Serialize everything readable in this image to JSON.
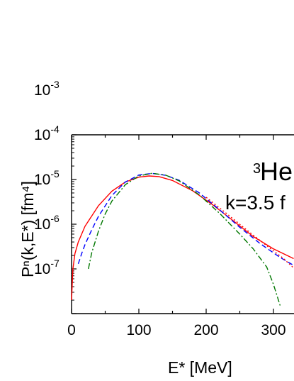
{
  "chart_data": {
    "type": "line",
    "xlabel": "E* [MeV]",
    "ylabel": "Pⁿ(k,E*) [fm⁴]",
    "xlim": [
      0,
      330
    ],
    "ylim": [
      1e-07,
      0.001
    ],
    "yscale": "log",
    "x_ticks": [
      "0",
      "100",
      "200",
      "300"
    ],
    "y_ticks": [
      {
        "base": "10",
        "exp": "-3"
      },
      {
        "base": "10",
        "exp": "-4"
      },
      {
        "base": "10",
        "exp": "-5"
      },
      {
        "base": "10",
        "exp": "-6"
      },
      {
        "base": "10",
        "exp": "-7"
      }
    ],
    "annotations": {
      "nucleus_sup": "3",
      "nucleus": "He",
      "momentum": "k=3.5 f"
    },
    "series": [
      {
        "color": "#ff0000",
        "style": "solid",
        "x": [
          0,
          2,
          5,
          10,
          20,
          40,
          60,
          80,
          100,
          115,
          130,
          150,
          180,
          210,
          240,
          270,
          300,
          330
        ],
        "y": [
          2e-07,
          1e-06,
          2.2e-06,
          4e-06,
          9e-06,
          2.6e-05,
          5.5e-05,
          8.8e-05,
          0.000113,
          0.00012,
          0.000116,
          9.5e-05,
          5.6e-05,
          2.7e-05,
          1.2e-05,
          5.3e-06,
          2.8e-06,
          1.7e-06
        ]
      },
      {
        "color": "#0000ff",
        "style": "dashed",
        "x": [
          10,
          15,
          20,
          30,
          40,
          60,
          80,
          100,
          120,
          140,
          160,
          190,
          220,
          250,
          280,
          310,
          330
        ],
        "y": [
          1.3e-06,
          2.2e-06,
          3.5e-06,
          7.5e-06,
          1.5e-05,
          4.4e-05,
          8.8e-05,
          0.000126,
          0.000137,
          0.000124,
          9.6e-05,
          5e-05,
          2.1e-05,
          8.5e-06,
          3.7e-06,
          1.8e-06,
          1.2e-06
        ]
      },
      {
        "color": "#ff0000",
        "style": "dotted",
        "x": [
          200,
          230,
          260,
          290,
          315,
          330
        ],
        "y": [
          4e-05,
          1.75e-05,
          7.5e-06,
          3.3e-06,
          1.7e-06,
          1.05e-06
        ]
      },
      {
        "color": "#007700",
        "style": "dashdot",
        "x": [
          25,
          30,
          40,
          50,
          60,
          80,
          100,
          120,
          140,
          160,
          190,
          220,
          250,
          270,
          290,
          300,
          310
        ],
        "y": [
          1e-06,
          2.3e-06,
          7e-06,
          1.7e-05,
          3.3e-05,
          7.7e-05,
          0.00012,
          0.000138,
          0.000125,
          9.3e-05,
          4.5e-05,
          1.75e-05,
          6e-06,
          2.8e-06,
          1.1e-06,
          4.5e-07,
          1.5e-07
        ]
      }
    ]
  }
}
